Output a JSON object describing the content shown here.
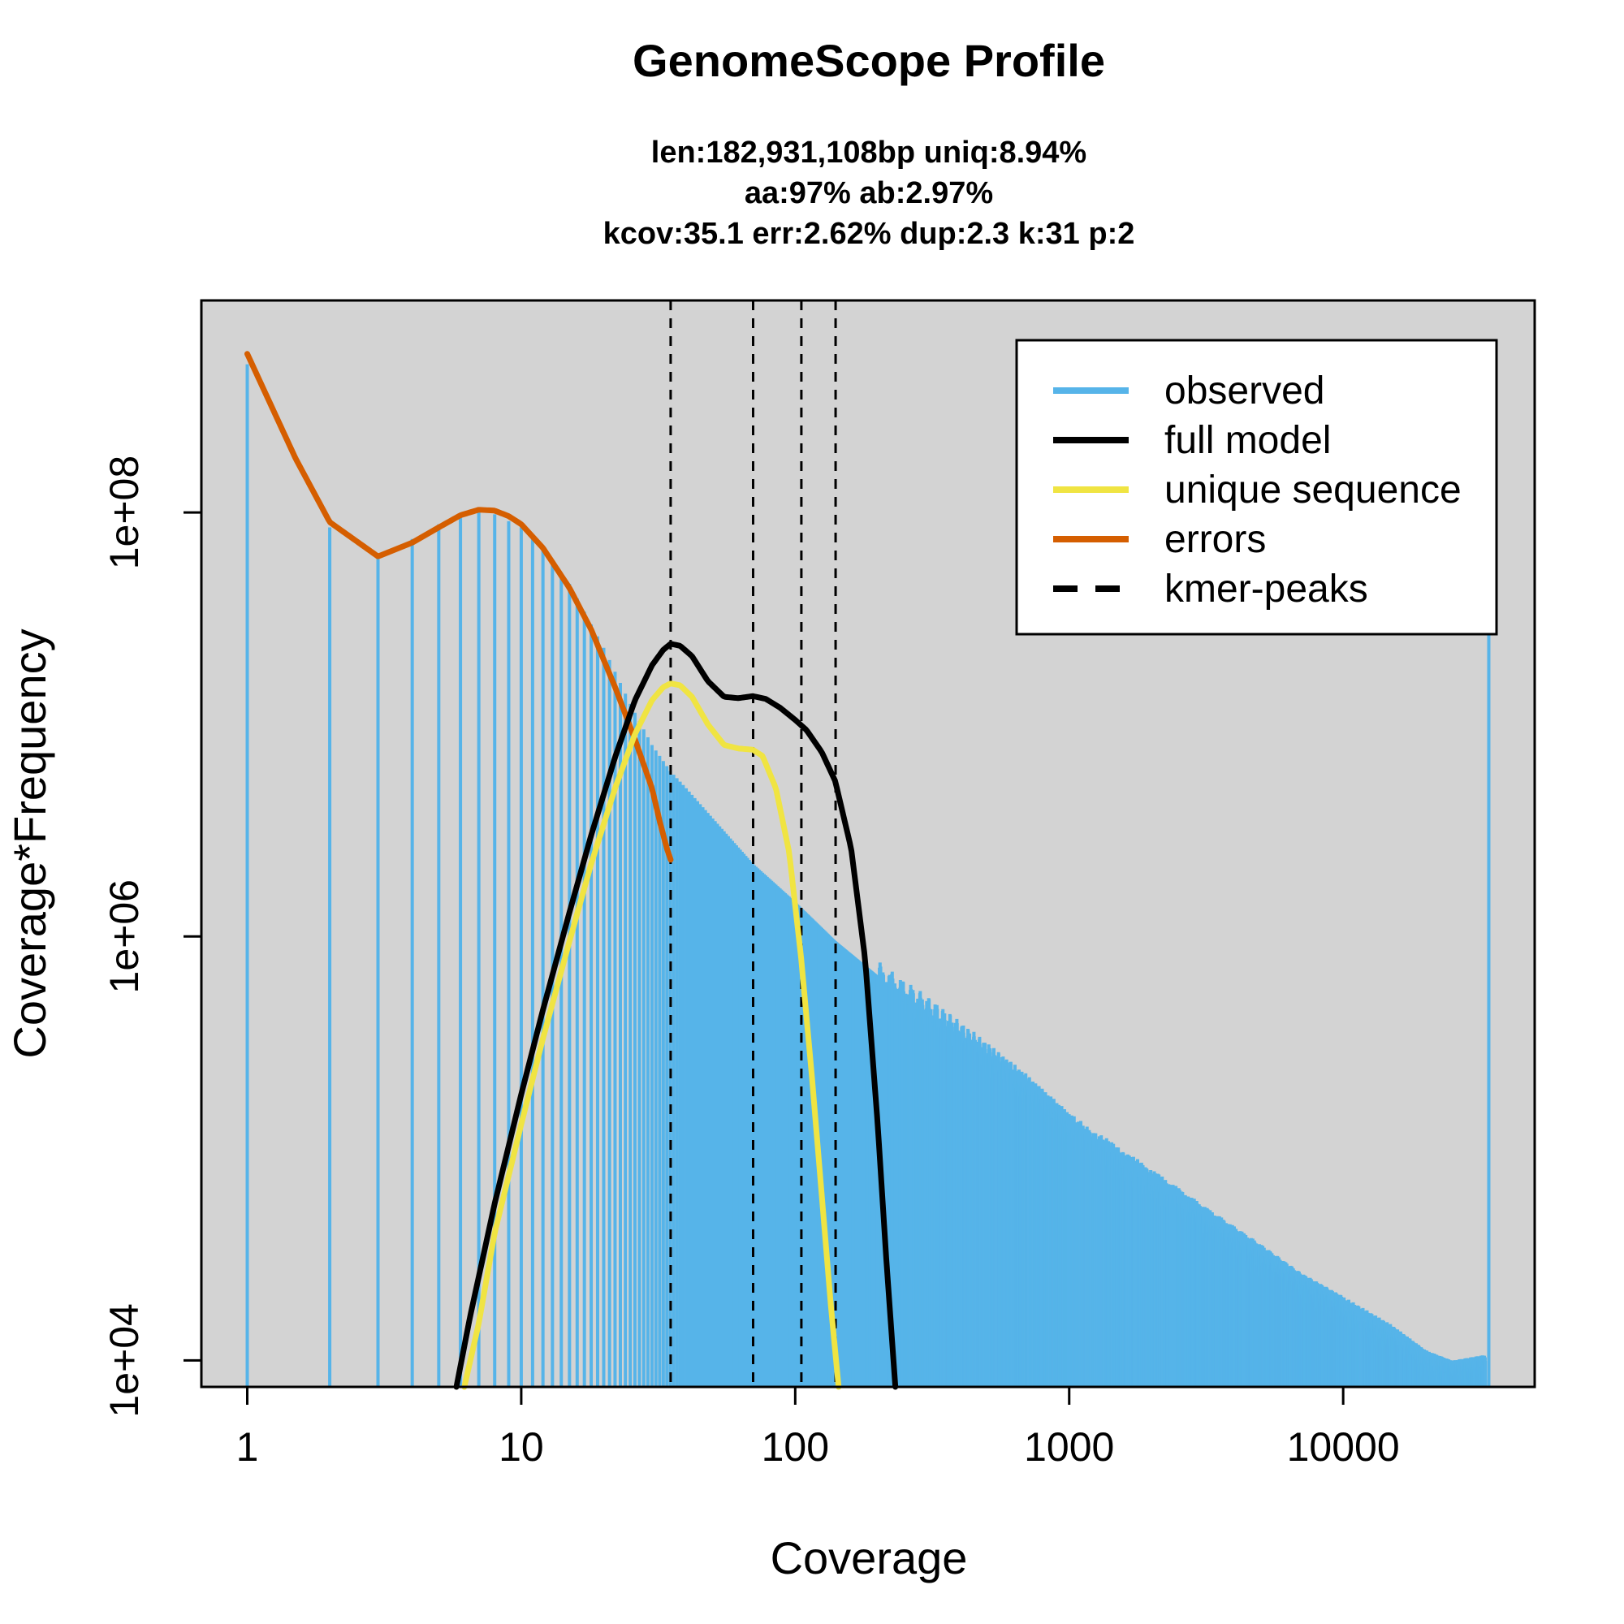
{
  "chart_data": {
    "type": "line",
    "title": "GenomeScope Profile",
    "subtitle_lines": [
      "len:182,931,108bp uniq:8.94%",
      "aa:97% ab:2.97%",
      "kcov:35.1 err:2.62%  dup:2.3  k:31 p:2"
    ],
    "xlabel": "Coverage",
    "ylabel": "Coverage*Frequency",
    "x_scale": "log",
    "y_scale": "log",
    "xlim": [
      0.68,
      50000
    ],
    "ylim": [
      7500,
      1000000000.0
    ],
    "x_ticks": [
      {
        "value": 1,
        "label": "1"
      },
      {
        "value": 10,
        "label": "10"
      },
      {
        "value": 100,
        "label": "100"
      },
      {
        "value": 1000,
        "label": "1000"
      },
      {
        "value": 10000,
        "label": "10000"
      }
    ],
    "y_ticks": [
      {
        "value": 10000,
        "label": "1e+04"
      },
      {
        "value": 1000000,
        "label": "1e+06"
      },
      {
        "value": 100000000,
        "label": "1e+08"
      }
    ],
    "kmer_peaks": [
      35.1,
      70.2,
      105.3,
      140.4
    ],
    "legend": {
      "position": "top-right",
      "entries": [
        {
          "name": "observed",
          "color": "#56B4E9",
          "style": "solid"
        },
        {
          "name": "full model",
          "color": "#000000",
          "style": "solid"
        },
        {
          "name": "unique sequence",
          "color": "#F0E442",
          "style": "solid"
        },
        {
          "name": "errors",
          "color": "#D55E00",
          "style": "solid"
        },
        {
          "name": "kmer-peaks",
          "color": "#000000",
          "style": "dashed"
        }
      ]
    },
    "colors": {
      "panel_background": "#D3D3D3",
      "observed": "#56B4E9",
      "full_model": "#000000",
      "unique_sequence": "#F0E442",
      "errors": "#D55E00"
    },
    "series": [
      {
        "name": "observed",
        "points": [
          [
            1,
            500000000
          ],
          [
            2,
            85000000
          ],
          [
            3,
            64000000
          ],
          [
            4,
            75000000
          ],
          [
            5,
            88000000
          ],
          [
            6,
            97000000
          ],
          [
            7,
            100000000
          ],
          [
            8,
            98000000
          ],
          [
            10,
            85000000
          ],
          [
            12,
            68000000
          ],
          [
            15,
            46000000
          ],
          [
            20,
            23000000
          ],
          [
            25,
            12500000
          ],
          [
            30,
            8000000
          ],
          [
            35.1,
            6000000
          ],
          [
            40,
            5000000
          ],
          [
            50,
            3600000
          ],
          [
            70,
            2200000
          ],
          [
            100,
            1450000
          ],
          [
            140,
            950000
          ],
          [
            200,
            650000
          ],
          [
            300,
            450000
          ],
          [
            500,
            270000
          ],
          [
            700,
            190000
          ],
          [
            1000,
            125000
          ],
          [
            2000,
            68000
          ],
          [
            3000,
            47000
          ],
          [
            5000,
            30000
          ],
          [
            7000,
            22000
          ],
          [
            10000,
            17000
          ],
          [
            15000,
            12500
          ],
          [
            20000,
            9500
          ],
          [
            25000,
            8500
          ],
          [
            33000,
            9000
          ],
          [
            34000,
            110000000
          ]
        ]
      },
      {
        "name": "full model",
        "points": [
          [
            5.8,
            7500
          ],
          [
            6.5,
            16000
          ],
          [
            8,
            55000
          ],
          [
            10,
            180000
          ],
          [
            12,
            450000
          ],
          [
            15,
            1300000
          ],
          [
            18,
            3000000
          ],
          [
            22,
            7000000
          ],
          [
            26,
            13000000
          ],
          [
            30,
            19000000
          ],
          [
            33,
            22500000
          ],
          [
            35.1,
            24000000
          ],
          [
            38,
            23500000
          ],
          [
            42,
            21000000
          ],
          [
            48,
            16000000
          ],
          [
            55,
            13500000
          ],
          [
            62,
            13300000
          ],
          [
            70,
            13600000
          ],
          [
            78,
            13200000
          ],
          [
            88,
            12000000
          ],
          [
            100,
            10500000
          ],
          [
            110,
            9400000
          ],
          [
            125,
            7400000
          ],
          [
            140,
            5400000
          ],
          [
            160,
            2600000
          ],
          [
            180,
            780000
          ],
          [
            200,
            130000
          ],
          [
            215,
            30000
          ],
          [
            232,
            7500
          ]
        ]
      },
      {
        "name": "unique sequence",
        "points": [
          [
            6.2,
            7500
          ],
          [
            7,
            15000
          ],
          [
            8,
            40000
          ],
          [
            10,
            130000
          ],
          [
            12,
            330000
          ],
          [
            15,
            950000
          ],
          [
            18,
            2200000
          ],
          [
            22,
            5000000
          ],
          [
            26,
            9000000
          ],
          [
            30,
            13000000
          ],
          [
            33,
            15000000
          ],
          [
            35.1,
            15600000
          ],
          [
            38,
            15300000
          ],
          [
            42,
            13500000
          ],
          [
            48,
            10000000
          ],
          [
            55,
            8000000
          ],
          [
            62,
            7700000
          ],
          [
            70,
            7600000
          ],
          [
            76,
            7100000
          ],
          [
            85,
            5000000
          ],
          [
            95,
            2500000
          ],
          [
            105,
            800000
          ],
          [
            115,
            220000
          ],
          [
            125,
            60000
          ],
          [
            135,
            18000
          ],
          [
            144,
            7500
          ]
        ]
      },
      {
        "name": "errors",
        "points": [
          [
            1,
            560000000
          ],
          [
            1.5,
            180000000
          ],
          [
            2,
            90000000
          ],
          [
            3,
            62000000
          ],
          [
            4,
            72000000
          ],
          [
            5,
            85000000
          ],
          [
            6,
            97000000
          ],
          [
            7,
            103000000
          ],
          [
            8,
            102000000
          ],
          [
            9,
            96000000
          ],
          [
            10,
            88000000
          ],
          [
            12,
            68000000
          ],
          [
            15,
            44000000
          ],
          [
            18,
            28000000
          ],
          [
            22,
            15000000
          ],
          [
            26,
            8500000
          ],
          [
            30,
            5000000
          ],
          [
            32,
            3500000
          ],
          [
            34,
            2600000
          ],
          [
            35.1,
            2300000
          ]
        ]
      }
    ]
  }
}
